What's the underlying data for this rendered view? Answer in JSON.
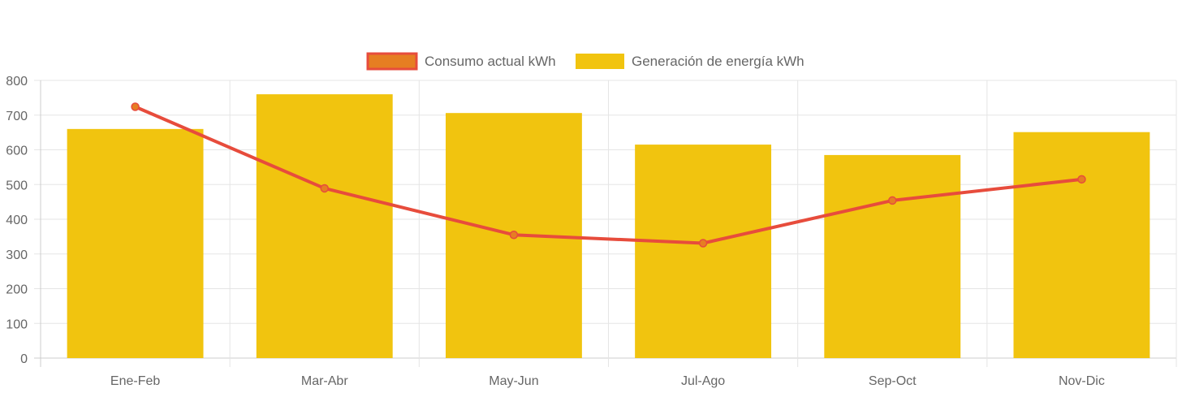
{
  "chart_data": {
    "type": "bar",
    "categories": [
      "Ene-Feb",
      "Mar-Abr",
      "May-Jun",
      "Jul-Ago",
      "Sep-Oct",
      "Nov-Dic"
    ],
    "series": [
      {
        "name": "Consumo actual kWh",
        "type": "line",
        "values": [
          724,
          489,
          355,
          331,
          454,
          515
        ],
        "color": "#e74c3c",
        "point_color": "#e67e22"
      },
      {
        "name": "Generación de energía kWh",
        "type": "bar",
        "values": [
          660,
          760,
          706,
          615,
          585,
          651
        ],
        "color": "#f1c40f"
      }
    ],
    "y_ticks": [
      "0",
      "100",
      "200",
      "300",
      "400",
      "500",
      "600",
      "700",
      "800"
    ],
    "ylim": [
      0,
      800
    ],
    "grid": true,
    "legend_position": "top-center"
  }
}
